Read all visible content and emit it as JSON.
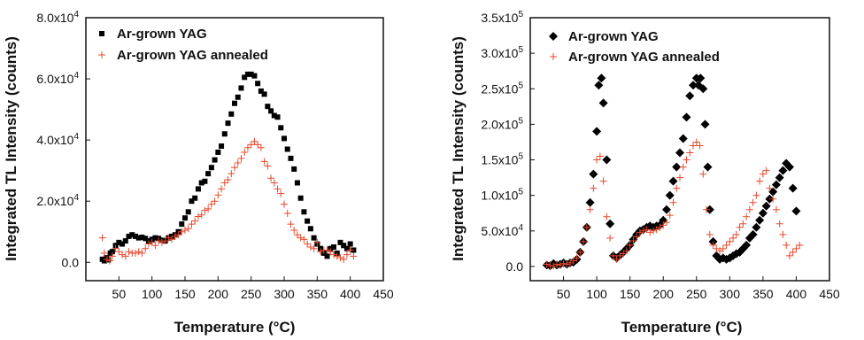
{
  "colors": {
    "series1": "#000000",
    "series2": "#e8482c",
    "axis": "#111111"
  },
  "chart_data": [
    {
      "type": "scatter",
      "xlabel": "Temperature (°C)",
      "ylabel": "Integrated TL Intensity (counts)",
      "xlim": [
        0,
        450
      ],
      "ylim": [
        -6000,
        80000
      ],
      "xticks": [
        {
          "v": 50,
          "label": "50"
        },
        {
          "v": 100,
          "label": "100"
        },
        {
          "v": 150,
          "label": "150"
        },
        {
          "v": 200,
          "label": "200"
        },
        {
          "v": 250,
          "label": "250"
        },
        {
          "v": 300,
          "label": "300"
        },
        {
          "v": 350,
          "label": "350"
        },
        {
          "v": 400,
          "label": "400"
        },
        {
          "v": 450,
          "label": "450"
        }
      ],
      "yticks": [
        {
          "v": 0,
          "m": "0.0",
          "e": ""
        },
        {
          "v": 20000,
          "m": "2.0x10",
          "e": "4"
        },
        {
          "v": 40000,
          "m": "4.0x10",
          "e": "4"
        },
        {
          "v": 60000,
          "m": "6.0x10",
          "e": "4"
        },
        {
          "v": 80000,
          "m": "8.0x10",
          "e": "4"
        }
      ],
      "legend": "top-left",
      "series": [
        {
          "name": "Ar-grown YAG",
          "marker": "square",
          "x": [
            25,
            28,
            31,
            34,
            37,
            40,
            45,
            50,
            55,
            60,
            65,
            70,
            75,
            80,
            85,
            90,
            95,
            100,
            105,
            110,
            115,
            120,
            125,
            130,
            135,
            140,
            145,
            150,
            155,
            160,
            165,
            170,
            175,
            180,
            185,
            190,
            195,
            200,
            205,
            210,
            215,
            220,
            225,
            230,
            235,
            240,
            245,
            250,
            255,
            260,
            265,
            270,
            275,
            280,
            285,
            290,
            295,
            300,
            305,
            310,
            315,
            320,
            325,
            330,
            335,
            340,
            345,
            350,
            355,
            360,
            365,
            370,
            375,
            380,
            385,
            390,
            395,
            400,
            405
          ],
          "y": [
            1000,
            500,
            1500,
            800,
            3000,
            3500,
            5500,
            6500,
            6000,
            7000,
            8500,
            9000,
            8500,
            8000,
            8200,
            7800,
            7000,
            7500,
            8000,
            7800,
            7200,
            7000,
            8000,
            8500,
            9000,
            10000,
            12500,
            14500,
            16500,
            20000,
            21000,
            24000,
            26000,
            26500,
            29000,
            31000,
            33500,
            36000,
            38000,
            42000,
            45500,
            48500,
            52000,
            54000,
            57000,
            60500,
            61500,
            61500,
            61000,
            58500,
            56000,
            55000,
            51000,
            49500,
            48000,
            47500,
            44000,
            40500,
            37000,
            34000,
            30500,
            26000,
            21000,
            16500,
            13500,
            11000,
            8000,
            6000,
            4500,
            3000,
            2000,
            4500,
            5000,
            3000,
            6500,
            5500,
            4500,
            6000,
            4000
          ]
        },
        {
          "name": "Ar-grown YAG annealed",
          "marker": "plus",
          "x": [
            25,
            28,
            32,
            36,
            40,
            45,
            50,
            55,
            60,
            65,
            70,
            75,
            80,
            85,
            90,
            95,
            100,
            105,
            110,
            115,
            120,
            125,
            130,
            135,
            140,
            145,
            150,
            155,
            160,
            165,
            170,
            175,
            180,
            185,
            190,
            195,
            200,
            205,
            210,
            215,
            220,
            225,
            230,
            235,
            240,
            245,
            250,
            255,
            260,
            265,
            270,
            275,
            280,
            285,
            290,
            295,
            300,
            305,
            310,
            315,
            320,
            325,
            330,
            335,
            340,
            345,
            350,
            355,
            360,
            365,
            370,
            375,
            380,
            385,
            390,
            395,
            400,
            405
          ],
          "y": [
            8000,
            3000,
            1000,
            500,
            2000,
            4500,
            3500,
            2500,
            2000,
            3500,
            3000,
            3000,
            3500,
            3000,
            4500,
            6000,
            6500,
            5500,
            7000,
            6500,
            7000,
            8000,
            7500,
            8500,
            9000,
            10000,
            10500,
            11000,
            12500,
            13500,
            15000,
            15500,
            17000,
            17500,
            19000,
            20000,
            22000,
            24000,
            26000,
            27000,
            29000,
            31000,
            32500,
            34000,
            36000,
            37500,
            38500,
            39500,
            38500,
            37500,
            33000,
            31500,
            27500,
            26000,
            24000,
            22500,
            19000,
            16000,
            12500,
            10500,
            9000,
            8000,
            7500,
            6000,
            5000,
            4500,
            6500,
            3500,
            4000,
            4000,
            3500,
            2500,
            2000,
            1500,
            1000,
            2500,
            4000,
            2000
          ]
        }
      ]
    },
    {
      "type": "scatter",
      "xlabel": "Temperature (°C)",
      "ylabel": "Integrated TL Intensity (counts)",
      "xlim": [
        0,
        450
      ],
      "ylim": [
        -20000,
        350000
      ],
      "xticks": [
        {
          "v": 50,
          "label": "50"
        },
        {
          "v": 100,
          "label": "100"
        },
        {
          "v": 150,
          "label": "150"
        },
        {
          "v": 200,
          "label": "200"
        },
        {
          "v": 250,
          "label": "250"
        },
        {
          "v": 300,
          "label": "300"
        },
        {
          "v": 350,
          "label": "350"
        },
        {
          "v": 400,
          "label": "400"
        },
        {
          "v": 450,
          "label": "450"
        }
      ],
      "yticks": [
        {
          "v": 0,
          "m": "0.0",
          "e": ""
        },
        {
          "v": 50000,
          "m": "5.0x10",
          "e": "4"
        },
        {
          "v": 100000,
          "m": "1.0x10",
          "e": "5"
        },
        {
          "v": 150000,
          "m": "1.5x10",
          "e": "5"
        },
        {
          "v": 200000,
          "m": "2.0x10",
          "e": "5"
        },
        {
          "v": 250000,
          "m": "2.5x10",
          "e": "5"
        },
        {
          "v": 300000,
          "m": "3.0x10",
          "e": "5"
        },
        {
          "v": 350000,
          "m": "3.5x10",
          "e": "5"
        }
      ],
      "legend": "top-left",
      "series": [
        {
          "name": "Ar-grown YAG",
          "marker": "diamond",
          "x": [
            25,
            30,
            35,
            40,
            45,
            50,
            55,
            60,
            65,
            70,
            75,
            80,
            85,
            90,
            95,
            100,
            103,
            107,
            110,
            115,
            120,
            125,
            130,
            135,
            140,
            145,
            150,
            155,
            160,
            165,
            170,
            175,
            180,
            185,
            190,
            195,
            200,
            205,
            210,
            215,
            220,
            225,
            230,
            235,
            240,
            245,
            250,
            253,
            256,
            260,
            263,
            267,
            270,
            275,
            280,
            285,
            290,
            295,
            300,
            305,
            310,
            315,
            320,
            325,
            330,
            335,
            340,
            345,
            350,
            355,
            360,
            365,
            370,
            375,
            380,
            385,
            390,
            395,
            400
          ],
          "y": [
            2000,
            1000,
            4000,
            2000,
            3000,
            5000,
            3000,
            5000,
            6000,
            10000,
            20000,
            35000,
            55000,
            90000,
            130000,
            190000,
            255000,
            265000,
            230000,
            150000,
            60000,
            15000,
            12000,
            16000,
            20000,
            25000,
            30000,
            38000,
            45000,
            50000,
            52000,
            55000,
            57000,
            55000,
            57000,
            58000,
            65000,
            80000,
            100000,
            120000,
            140000,
            160000,
            180000,
            210000,
            240000,
            255000,
            265000,
            255000,
            265000,
            250000,
            200000,
            140000,
            80000,
            35000,
            15000,
            10000,
            12000,
            10000,
            12000,
            15000,
            18000,
            20000,
            25000,
            30000,
            40000,
            45000,
            55000,
            65000,
            75000,
            85000,
            95000,
            105000,
            115000,
            125000,
            135000,
            145000,
            140000,
            110000,
            78000
          ]
        },
        {
          "name": "Ar-grown YAG annealed",
          "marker": "plus",
          "x": [
            25,
            30,
            35,
            40,
            45,
            50,
            55,
            60,
            65,
            70,
            75,
            80,
            85,
            90,
            95,
            100,
            105,
            110,
            115,
            120,
            125,
            130,
            135,
            140,
            145,
            150,
            155,
            160,
            165,
            170,
            175,
            180,
            185,
            190,
            195,
            200,
            205,
            210,
            215,
            220,
            225,
            230,
            235,
            240,
            245,
            250,
            255,
            260,
            265,
            270,
            275,
            280,
            285,
            290,
            295,
            300,
            305,
            310,
            315,
            320,
            325,
            330,
            335,
            340,
            345,
            350,
            355,
            360,
            365,
            370,
            375,
            380,
            385,
            390,
            395,
            400,
            405
          ],
          "y": [
            3000,
            1000,
            500,
            3000,
            2000,
            4000,
            3000,
            5000,
            8000,
            12000,
            20000,
            35000,
            55000,
            80000,
            110000,
            150000,
            155000,
            120000,
            70000,
            40000,
            15000,
            10000,
            15000,
            18000,
            22000,
            30000,
            36000,
            42000,
            48000,
            50000,
            52000,
            48000,
            50000,
            52000,
            55000,
            58000,
            62000,
            72000,
            90000,
            110000,
            125000,
            140000,
            150000,
            160000,
            170000,
            175000,
            170000,
            130000,
            80000,
            45000,
            30000,
            25000,
            22000,
            25000,
            30000,
            35000,
            40000,
            45000,
            55000,
            60000,
            70000,
            80000,
            90000,
            100000,
            120000,
            130000,
            135000,
            110000,
            95000,
            80000,
            60000,
            45000,
            30000,
            15000,
            20000,
            25000,
            30000
          ]
        }
      ]
    }
  ]
}
